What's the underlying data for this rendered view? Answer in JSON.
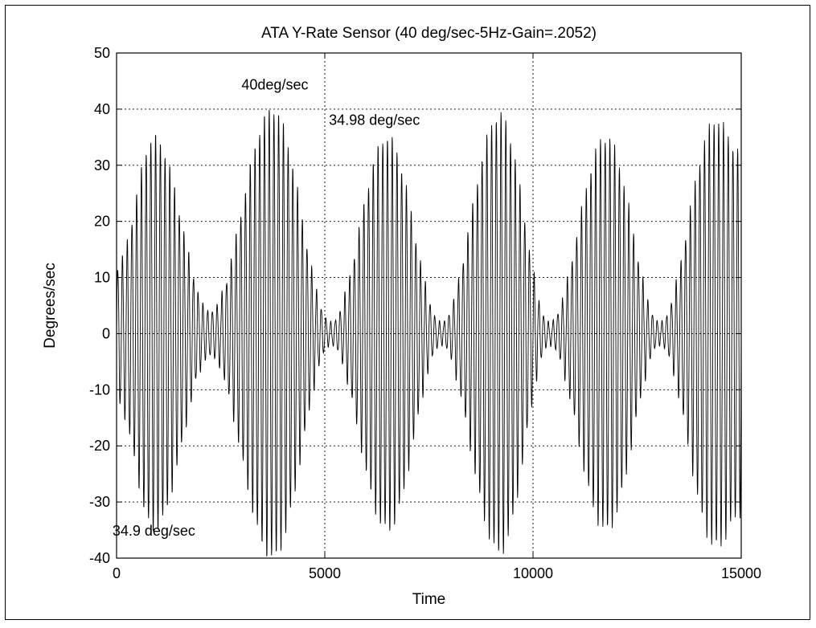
{
  "chart_data": {
    "type": "line",
    "title": "ATA Y-Rate Sensor (40 deg/sec-5Hz-Gain=.2052)",
    "xlabel": "Time",
    "ylabel": "Degrees/sec",
    "xlim": [
      0,
      15000
    ],
    "ylim": [
      -40,
      50
    ],
    "xticks": [
      "0",
      "5000",
      "10000",
      "15000"
    ],
    "yticks": [
      "50",
      "40",
      "30",
      "20",
      "10",
      "0",
      "-10",
      "-20",
      "-30",
      "-40"
    ],
    "grid": true,
    "grid_style": "dotted",
    "line_color": "#000000",
    "signal": {
      "description_type": "oscillation",
      "cycles": 132,
      "beat_envelope_peaks_x": [
        900,
        3750,
        6500,
        9200,
        11750,
        14400
      ],
      "beat_envelope_nulls_x": [
        2250,
        5150,
        7800,
        10400,
        13050
      ],
      "peak_amplitudes": [
        35,
        40,
        35,
        39,
        35,
        38
      ],
      "null_amplitudes": [
        4,
        2,
        2,
        2,
        2
      ]
    },
    "annotations": [
      {
        "text": "40deg/sec",
        "x": 3000,
        "y": 43.5
      },
      {
        "text": "34.98 deg/sec",
        "x": 5100,
        "y": 37.2
      },
      {
        "text": "34.9 deg/sec",
        "x": -100,
        "y": -36
      }
    ]
  }
}
